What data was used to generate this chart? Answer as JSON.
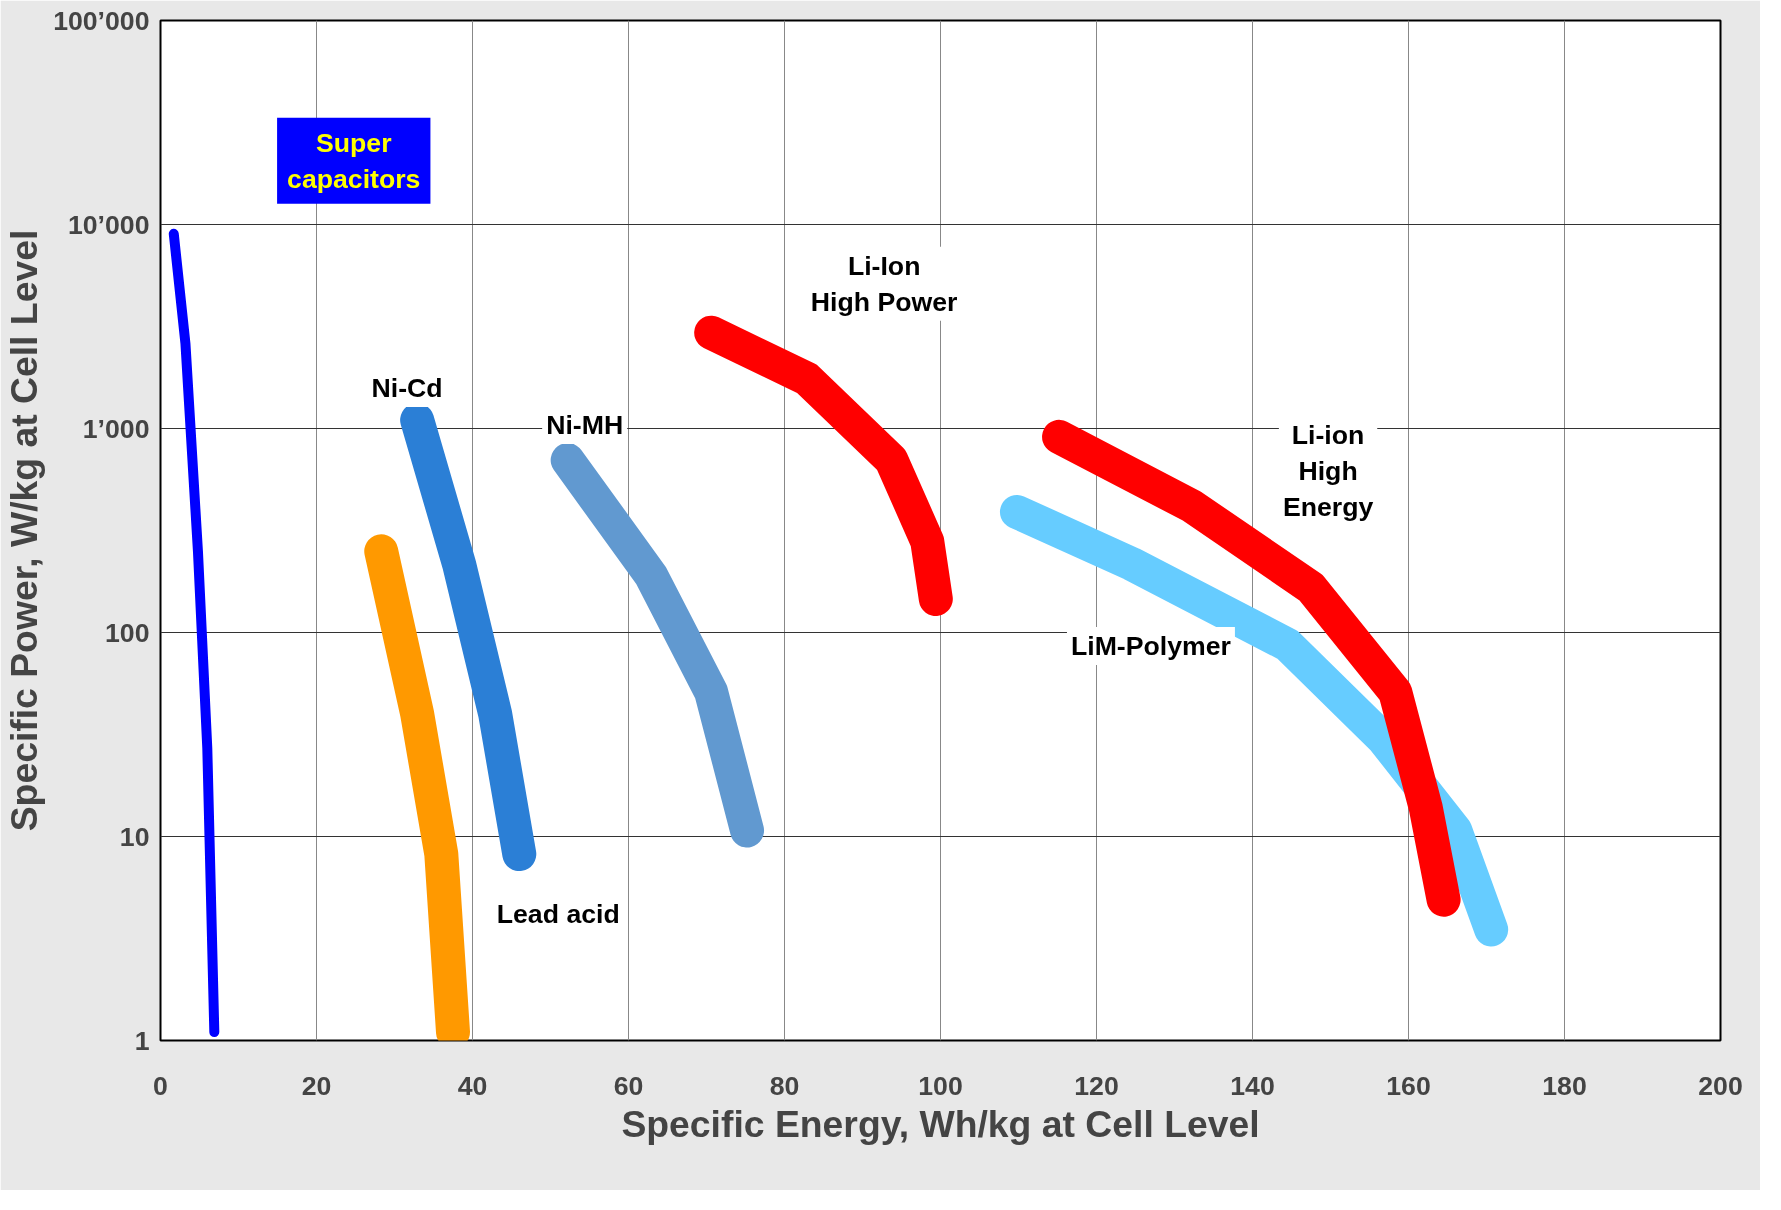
{
  "chart_data": {
    "type": "line",
    "xlabel": "Specific Energy, Wh/kg at Cell Level",
    "ylabel": "Specific Power, W/kg at Cell Level",
    "log": "y",
    "grid": true,
    "marker": "none",
    "line_style": "solid",
    "xlim": [
      0,
      200
    ],
    "xticks": [
      0,
      20,
      40,
      60,
      80,
      100,
      120,
      140,
      160,
      180,
      200
    ],
    "ylim": [
      1,
      100000
    ],
    "yticks": [
      1,
      10,
      100,
      {
        "value": 1000,
        "label": "1’000"
      },
      {
        "value": 10000,
        "label": "10’000"
      },
      {
        "value": 100000,
        "label": "100’000"
      }
    ],
    "series": [
      {
        "name": "Super\ncapacitors",
        "color": "#0000ff",
        "x": [
          1.7,
          3.2,
          4.8,
          6,
          6.9
        ],
        "values": [
          9000,
          2600,
          250,
          27,
          1.1
        ]
      },
      {
        "name": "Ni-Cd",
        "color": "#2b7fd6",
        "x": [
          32.9,
          38.3,
          42.9,
          46
        ],
        "values": [
          1100,
          215,
          40,
          8.2
        ]
      },
      {
        "name": "Lead acid",
        "color": "#ff9900",
        "x": [
          28.3,
          32.9,
          36,
          37.5
        ],
        "values": [
          250,
          40,
          8.2,
          1.1
        ]
      },
      {
        "name": "Ni-MH",
        "color": "#6199d0",
        "x": [
          52.2,
          62.9,
          70.6,
          75.2
        ],
        "values": [
          700,
          190,
          51,
          10.7
        ]
      },
      {
        "name": "Li-Ion\nHigh Power",
        "color": "#ff0000",
        "x": [
          70.6,
          82.9,
          93.7,
          98.3,
          99.4
        ],
        "values": [
          2950,
          1750,
          700,
          280,
          146
        ]
      },
      {
        "name": "LiM-Polymer",
        "color": "#66ccff",
        "x": [
          109.8,
          124.5,
          144.5,
          156.8,
          166,
          170.6
        ],
        "values": [
          390,
          217,
          87,
          30,
          10.7,
          3.5
        ]
      },
      {
        "name": "Li-ion\nHigh\nEnergy",
        "color": "#ff0000",
        "x": [
          115.2,
          132.2,
          147.5,
          158.3,
          162.2,
          164.5
        ],
        "values": [
          910,
          417,
          166,
          51,
          13.9,
          4.9
        ]
      }
    ]
  }
}
